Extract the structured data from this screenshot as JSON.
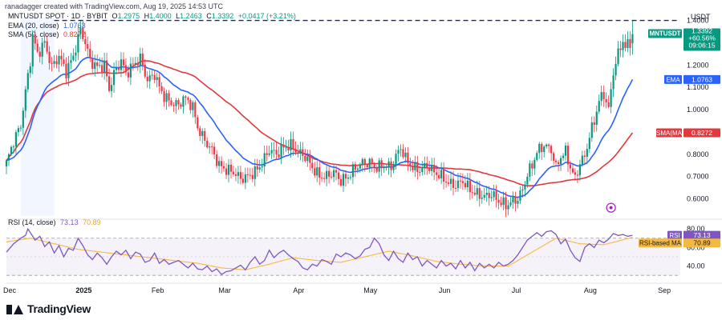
{
  "header": {
    "credit": "ranadagger created with TradingView.com, Aug 19, 2025 14:53 UTC",
    "symbol": "MNTUSDT SPOT · 1D · BYBIT",
    "ohlc": {
      "o_label": "O",
      "o": "1.2975",
      "h_label": "H",
      "h": "1.4000",
      "l_label": "L",
      "l": "1.2463",
      "c_label": "C",
      "c": "1.3392",
      "change": "+0.0417 (+3.21%)"
    },
    "ema": {
      "label": "EMA (20, close)",
      "value": "1.0763"
    },
    "sma": {
      "label": "SMA (50, close)",
      "value": "0.8272"
    },
    "rsi": {
      "label": "RSI (14, close)",
      "value": "73.13",
      "ma_value": "70.89"
    }
  },
  "brand": {
    "name": "TradingView"
  },
  "colors": {
    "up": "#089981",
    "down": "#f23645",
    "ema": "#2962ff",
    "sma": "#e0393e",
    "rsi": "#7e57c2",
    "rsi_ma": "#f5b940",
    "level_line": "#1a237e"
  },
  "chart_data": [
    {
      "type": "candlestick",
      "symbol": "MNTUSDT",
      "currency": "USDT",
      "y_ticks": [
        0.6,
        0.7,
        0.8,
        0.9,
        1.0,
        1.1,
        1.2,
        1.4
      ],
      "ylim": [
        0.53,
        1.42
      ],
      "x_ticks": [
        {
          "label": "Dec",
          "day": 0
        },
        {
          "label": "2025",
          "day": 31
        },
        {
          "label": "Feb",
          "day": 62
        },
        {
          "label": "Mar",
          "day": 90
        },
        {
          "label": "Apr",
          "day": 121
        },
        {
          "label": "May",
          "day": 151
        },
        {
          "label": "Jun",
          "day": 182
        },
        {
          "label": "Jul",
          "day": 212
        },
        {
          "label": "Aug",
          "day": 243
        },
        {
          "label": "Sep",
          "day": 274
        }
      ],
      "close_anchors": [
        [
          0,
          0.76
        ],
        [
          3,
          0.86
        ],
        [
          6,
          0.93
        ],
        [
          8,
          1.08
        ],
        [
          10,
          1.22
        ],
        [
          11,
          1.33
        ],
        [
          13,
          1.25
        ],
        [
          16,
          1.3
        ],
        [
          19,
          1.19
        ],
        [
          22,
          1.24
        ],
        [
          25,
          1.17
        ],
        [
          28,
          1.24
        ],
        [
          30,
          1.32
        ],
        [
          31,
          1.36
        ],
        [
          33,
          1.3
        ],
        [
          35,
          1.22
        ],
        [
          38,
          1.19
        ],
        [
          41,
          1.2
        ],
        [
          43,
          1.09
        ],
        [
          45,
          1.16
        ],
        [
          48,
          1.22
        ],
        [
          50,
          1.16
        ],
        [
          53,
          1.2
        ],
        [
          56,
          1.23
        ],
        [
          59,
          1.13
        ],
        [
          62,
          1.16
        ],
        [
          64,
          1.1
        ],
        [
          66,
          1.06
        ],
        [
          69,
          1.03
        ],
        [
          72,
          1.02
        ],
        [
          74,
          1.05
        ],
        [
          76,
          1.04
        ],
        [
          78,
          1.01
        ],
        [
          80,
          0.92
        ],
        [
          83,
          0.86
        ],
        [
          86,
          0.82
        ],
        [
          89,
          0.75
        ],
        [
          92,
          0.73
        ],
        [
          95,
          0.72
        ],
        [
          98,
          0.69
        ],
        [
          101,
          0.7
        ],
        [
          104,
          0.72
        ],
        [
          107,
          0.76
        ],
        [
          110,
          0.82
        ],
        [
          113,
          0.8
        ],
        [
          116,
          0.83
        ],
        [
          119,
          0.84
        ],
        [
          122,
          0.81
        ],
        [
          125,
          0.79
        ],
        [
          128,
          0.74
        ],
        [
          131,
          0.7
        ],
        [
          134,
          0.7
        ],
        [
          137,
          0.72
        ],
        [
          140,
          0.68
        ],
        [
          143,
          0.7
        ],
        [
          146,
          0.74
        ],
        [
          149,
          0.76
        ],
        [
          152,
          0.76
        ],
        [
          155,
          0.74
        ],
        [
          158,
          0.75
        ],
        [
          161,
          0.74
        ],
        [
          163,
          0.79
        ],
        [
          165,
          0.83
        ],
        [
          167,
          0.78
        ],
        [
          170,
          0.74
        ],
        [
          173,
          0.73
        ],
        [
          176,
          0.75
        ],
        [
          179,
          0.72
        ],
        [
          182,
          0.7
        ],
        [
          185,
          0.67
        ],
        [
          188,
          0.66
        ],
        [
          191,
          0.68
        ],
        [
          194,
          0.64
        ],
        [
          197,
          0.62
        ],
        [
          200,
          0.61
        ],
        [
          203,
          0.62
        ],
        [
          206,
          0.59
        ],
        [
          209,
          0.57
        ],
        [
          212,
          0.59
        ],
        [
          214,
          0.6
        ],
        [
          216,
          0.64
        ],
        [
          218,
          0.71
        ],
        [
          220,
          0.75
        ],
        [
          222,
          0.81
        ],
        [
          225,
          0.84
        ],
        [
          228,
          0.82
        ],
        [
          230,
          0.74
        ],
        [
          232,
          0.79
        ],
        [
          234,
          0.81
        ],
        [
          236,
          0.74
        ],
        [
          238,
          0.69
        ],
        [
          240,
          0.76
        ],
        [
          242,
          0.79
        ],
        [
          244,
          0.88
        ],
        [
          246,
          0.95
        ],
        [
          248,
          1.04
        ],
        [
          250,
          1.07
        ],
        [
          252,
          1.0
        ],
        [
          254,
          1.17
        ],
        [
          256,
          1.25
        ],
        [
          258,
          1.31
        ],
        [
          259,
          1.28
        ],
        [
          261,
          1.3
        ],
        [
          262,
          1.3392
        ]
      ],
      "highlighted_range": {
        "from_day": 6,
        "to_day": 20
      },
      "dashed_level": 1.4,
      "last_price": {
        "symbol": "MNTUSDT",
        "price": "1.3392",
        "change": "+60.56%",
        "countdown": "09:06:15"
      },
      "ema_20": {
        "label": "EMA",
        "value": "1.0763"
      },
      "sma_50": {
        "label": "SMA(MA",
        "value": "0.8272"
      },
      "marker": {
        "day": 253,
        "price": 0.56
      }
    },
    {
      "type": "line",
      "title": "RSI (14, close)",
      "y_ticks": [
        40,
        60,
        80
      ],
      "ylim": [
        25,
        87
      ],
      "band": [
        30,
        70
      ],
      "series": [
        {
          "name": "RSI",
          "value": "73.13"
        },
        {
          "name": "RSI-based MA",
          "value": "70.89"
        }
      ],
      "rsi_anchors": [
        [
          0,
          55
        ],
        [
          3,
          64
        ],
        [
          6,
          70
        ],
        [
          8,
          73
        ],
        [
          9,
          80
        ],
        [
          10,
          76
        ],
        [
          12,
          68
        ],
        [
          14,
          72
        ],
        [
          16,
          61
        ],
        [
          18,
          66
        ],
        [
          20,
          54
        ],
        [
          22,
          62
        ],
        [
          24,
          50
        ],
        [
          26,
          59
        ],
        [
          28,
          57
        ],
        [
          30,
          70
        ],
        [
          32,
          62
        ],
        [
          34,
          52
        ],
        [
          36,
          47
        ],
        [
          38,
          54
        ],
        [
          40,
          49
        ],
        [
          42,
          42
        ],
        [
          44,
          50
        ],
        [
          46,
          56
        ],
        [
          48,
          52
        ],
        [
          50,
          57
        ],
        [
          52,
          48
        ],
        [
          54,
          55
        ],
        [
          56,
          53
        ],
        [
          58,
          44
        ],
        [
          60,
          46
        ],
        [
          62,
          54
        ],
        [
          64,
          43
        ],
        [
          66,
          47
        ],
        [
          68,
          42
        ],
        [
          70,
          44
        ],
        [
          72,
          46
        ],
        [
          74,
          42
        ],
        [
          76,
          38
        ],
        [
          78,
          43
        ],
        [
          80,
          37
        ],
        [
          82,
          36
        ],
        [
          84,
          40
        ],
        [
          86,
          34
        ],
        [
          88,
          37
        ],
        [
          90,
          31
        ],
        [
          92,
          34
        ],
        [
          94,
          35
        ],
        [
          96,
          38
        ],
        [
          98,
          41
        ],
        [
          100,
          36
        ],
        [
          102,
          44
        ],
        [
          104,
          50
        ],
        [
          106,
          42
        ],
        [
          108,
          46
        ],
        [
          110,
          57
        ],
        [
          112,
          49
        ],
        [
          114,
          54
        ],
        [
          116,
          57
        ],
        [
          118,
          52
        ],
        [
          120,
          48
        ],
        [
          122,
          45
        ],
        [
          124,
          38
        ],
        [
          126,
          36
        ],
        [
          128,
          42
        ],
        [
          130,
          40
        ],
        [
          132,
          47
        ],
        [
          134,
          45
        ],
        [
          136,
          42
        ],
        [
          138,
          53
        ],
        [
          140,
          50
        ],
        [
          142,
          54
        ],
        [
          144,
          52
        ],
        [
          146,
          48
        ],
        [
          148,
          51
        ],
        [
          150,
          58
        ],
        [
          152,
          60
        ],
        [
          154,
          70
        ],
        [
          156,
          64
        ],
        [
          158,
          52
        ],
        [
          160,
          46
        ],
        [
          162,
          56
        ],
        [
          164,
          48
        ],
        [
          166,
          44
        ],
        [
          168,
          54
        ],
        [
          170,
          47
        ],
        [
          172,
          50
        ],
        [
          174,
          40
        ],
        [
          176,
          46
        ],
        [
          178,
          42
        ],
        [
          180,
          38
        ],
        [
          182,
          46
        ],
        [
          184,
          40
        ],
        [
          186,
          43
        ],
        [
          188,
          37
        ],
        [
          190,
          46
        ],
        [
          192,
          38
        ],
        [
          194,
          44
        ],
        [
          196,
          35
        ],
        [
          198,
          43
        ],
        [
          200,
          38
        ],
        [
          202,
          42
        ],
        [
          204,
          38
        ],
        [
          206,
          44
        ],
        [
          208,
          40
        ],
        [
          210,
          42
        ],
        [
          212,
          46
        ],
        [
          214,
          52
        ],
        [
          216,
          60
        ],
        [
          218,
          68
        ],
        [
          220,
          72
        ],
        [
          222,
          76
        ],
        [
          224,
          72
        ],
        [
          226,
          77
        ],
        [
          228,
          78
        ],
        [
          230,
          74
        ],
        [
          232,
          64
        ],
        [
          234,
          69
        ],
        [
          236,
          57
        ],
        [
          238,
          49
        ],
        [
          240,
          45
        ],
        [
          242,
          60
        ],
        [
          244,
          64
        ],
        [
          246,
          60
        ],
        [
          248,
          68
        ],
        [
          250,
          65
        ],
        [
          252,
          69
        ],
        [
          254,
          75
        ],
        [
          256,
          73
        ],
        [
          258,
          74
        ],
        [
          260,
          72
        ],
        [
          262,
          73.13
        ]
      ],
      "ma_anchors": [
        [
          0,
          66
        ],
        [
          10,
          70
        ],
        [
          20,
          64
        ],
        [
          30,
          58
        ],
        [
          40,
          55
        ],
        [
          50,
          52
        ],
        [
          60,
          49
        ],
        [
          70,
          46
        ],
        [
          80,
          43
        ],
        [
          90,
          38
        ],
        [
          100,
          36
        ],
        [
          110,
          42
        ],
        [
          120,
          49
        ],
        [
          130,
          46
        ],
        [
          140,
          44
        ],
        [
          150,
          50
        ],
        [
          160,
          56
        ],
        [
          170,
          51
        ],
        [
          180,
          45
        ],
        [
          190,
          42
        ],
        [
          200,
          40
        ],
        [
          210,
          40
        ],
        [
          220,
          55
        ],
        [
          230,
          70
        ],
        [
          240,
          64
        ],
        [
          250,
          63
        ],
        [
          262,
          70.89
        ]
      ]
    }
  ]
}
